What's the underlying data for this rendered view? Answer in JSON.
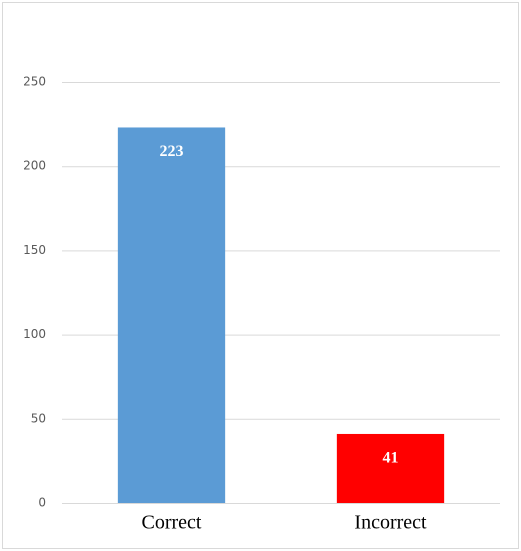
{
  "chart_data": {
    "type": "bar",
    "categories": [
      "Correct",
      "Incorrect"
    ],
    "values": [
      223,
      41
    ],
    "colors": [
      "#5b9bd5",
      "#ff0000"
    ],
    "ylim": [
      0,
      250
    ],
    "yticks": [
      0,
      50,
      100,
      150,
      200,
      250
    ],
    "grid": true
  }
}
